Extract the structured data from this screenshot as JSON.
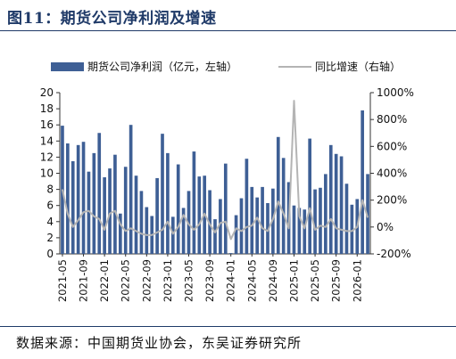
{
  "title": "图11：期货公司净利润及增速",
  "source": "数据来源：中国期货业协会，东吴证券研究所",
  "chart_data": {
    "type": "bar",
    "series": [
      {
        "name": "期货公司净利润（亿元，左轴）",
        "axis": "left",
        "type": "bar",
        "color": "#3e5f95",
        "values": [
          15.9,
          13.7,
          11.5,
          13.5,
          13.9,
          10.2,
          12.5,
          15.0,
          9.5,
          10.6,
          12.3,
          5.0,
          10.8,
          16.0,
          9.7,
          7.8,
          5.8,
          4.7,
          9.4,
          14.9,
          12.5,
          4.6,
          11.1,
          5.7,
          7.8,
          12.7,
          9.6,
          9.7,
          7.9,
          4.3,
          6.8,
          11.2,
          0.1,
          4.8,
          6.9,
          11.8,
          8.3,
          7.0,
          8.3,
          6.3,
          8.1,
          14.5,
          11.9,
          8.9,
          6.0,
          5.7,
          5.5,
          14.3,
          8.0,
          8.2,
          9.9,
          13.5,
          12.4,
          12.1,
          8.7,
          6.1,
          6.8,
          17.8,
          9.9
        ]
      },
      {
        "name": "同比增速（右轴）",
        "axis": "right",
        "type": "line",
        "color": "#b4b4b4",
        "values": [
          280,
          100,
          0,
          50,
          110,
          120,
          80,
          60,
          -20,
          100,
          120,
          20,
          -30,
          -10,
          -30,
          -50,
          -60,
          -60,
          -40,
          -20,
          40,
          -50,
          0,
          90,
          20,
          -20,
          20,
          100,
          20,
          -40,
          30,
          40,
          -90,
          -10,
          -30,
          0,
          10,
          70,
          -10,
          -30,
          60,
          190,
          100,
          -10,
          940,
          80,
          -10,
          140,
          -20,
          10,
          0,
          60,
          -10,
          -20,
          -30,
          -30,
          0,
          200,
          70
        ]
      }
    ],
    "x_tick_labels": [
      "2021-05",
      "2021-09",
      "2022-01",
      "2022-05",
      "2022-09",
      "2023-01",
      "2023-05",
      "2023-09",
      "2024-01",
      "2024-05",
      "2024-09",
      "2025-01",
      "2025-05",
      "2025-09",
      "2026-01"
    ],
    "y_left": {
      "min": 0,
      "max": 20,
      "ticks": [
        "0",
        "2",
        "4",
        "6",
        "8",
        "10",
        "12",
        "14",
        "16",
        "18",
        "20"
      ]
    },
    "y_right": {
      "min": -200,
      "max": 1000,
      "ticks": [
        "-200%",
        "0%",
        "200%",
        "400%",
        "600%",
        "800%",
        "1000%"
      ]
    },
    "legend": "top"
  }
}
